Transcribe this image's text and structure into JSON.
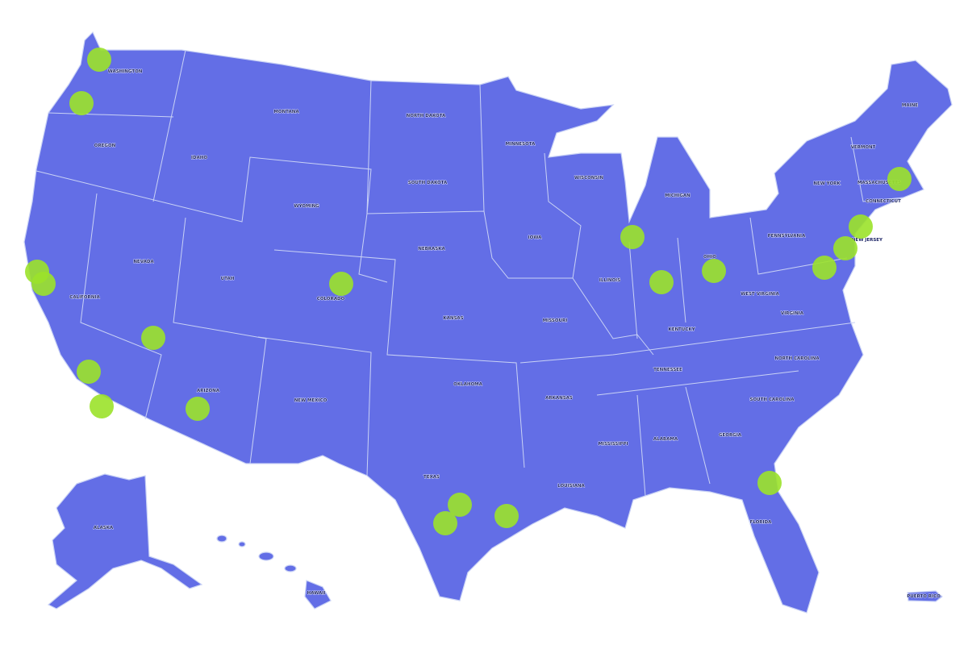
{
  "map": {
    "land_color": "#636ee6",
    "border_color": "#c9d2f5",
    "marker_color": "#9be22a",
    "states": [
      "WASHINGTON",
      "OREGON",
      "IDAHO",
      "MONTANA",
      "NORTH DAKOTA",
      "MINNESOTA",
      "WISCONSIN",
      "MICHIGAN",
      "MAINE",
      "VERMONT",
      "NEW YORK",
      "MASSACHUSETTS",
      "CONNECTICUT",
      "NEW JERSEY",
      "PENNSYLVANIA",
      "SOUTH DAKOTA",
      "WYOMING",
      "NEVADA",
      "CALIFORNIA",
      "UTAH",
      "COLORADO",
      "NEBRASKA",
      "IOWA",
      "ILLINOIS",
      "OHIO",
      "WEST VIRGINIA",
      "VIRGINIA",
      "KANSAS",
      "MISSOURI",
      "KENTUCKY",
      "TENNESSEE",
      "NORTH CAROLINA",
      "SOUTH CAROLINA",
      "ARIZONA",
      "NEW MEXICO",
      "OKLAHOMA",
      "ARKANSAS",
      "MISSISSIPPI",
      "ALABAMA",
      "GEORGIA",
      "TEXAS",
      "LOUISIANA",
      "FLORIDA",
      "ALASKA",
      "HAWAII",
      "PUERTO RICO"
    ]
  }
}
